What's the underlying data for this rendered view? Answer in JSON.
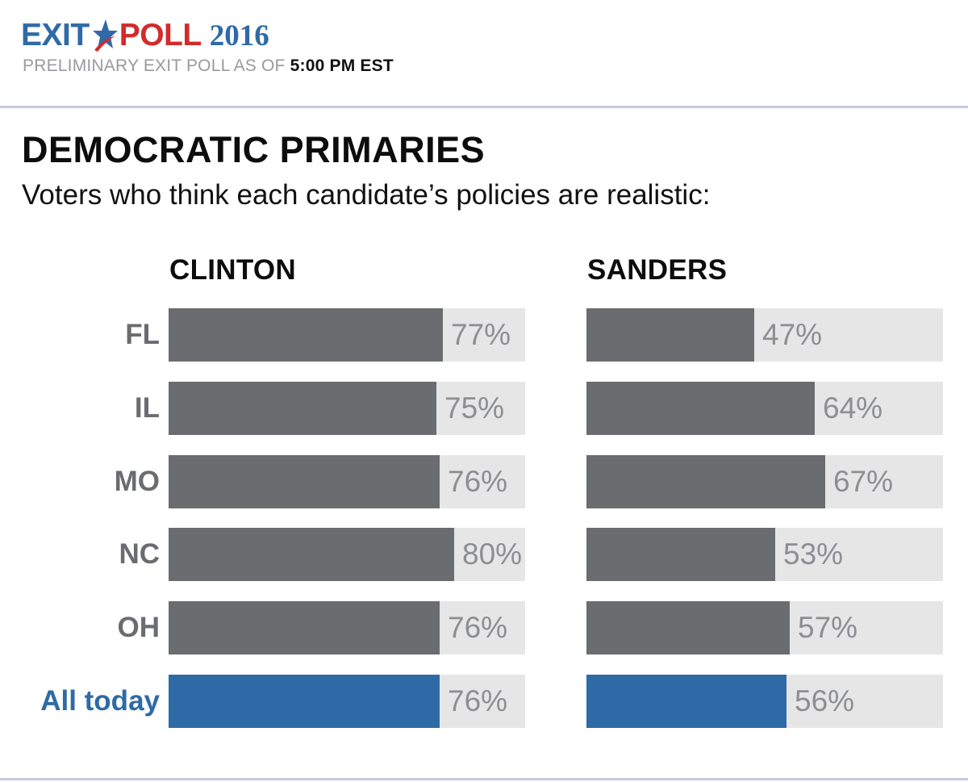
{
  "header": {
    "logo_exit": "EXIT",
    "logo_poll": "POLL",
    "logo_year": "2016",
    "subtitle_prefix": "PRELIMINARY EXIT POLL AS OF",
    "subtitle_time": "5:00 PM EST"
  },
  "colors": {
    "brand_blue": "#2f6aa7",
    "brand_red": "#d22b2b",
    "bar_gray": "#6b6c70",
    "bar_highlight": "#2e6aa6",
    "track": "#e6e6e7"
  },
  "icons": {
    "logo_star": "star-icon"
  },
  "chart_data": {
    "type": "bar",
    "orientation": "horizontal",
    "title": "DEMOCRATIC PRIMARIES",
    "subtitle": "Voters who think each candidate’s policies are realistic:",
    "categories": [
      "FL",
      "IL",
      "MO",
      "NC",
      "OH",
      "All today"
    ],
    "highlight_category": "All today",
    "xlim": [
      0,
      100
    ],
    "unit": "%",
    "series": [
      {
        "name": "CLINTON",
        "values": [
          77,
          75,
          76,
          80,
          76,
          76
        ]
      },
      {
        "name": "SANDERS",
        "values": [
          47,
          64,
          67,
          53,
          57,
          56
        ]
      }
    ]
  }
}
